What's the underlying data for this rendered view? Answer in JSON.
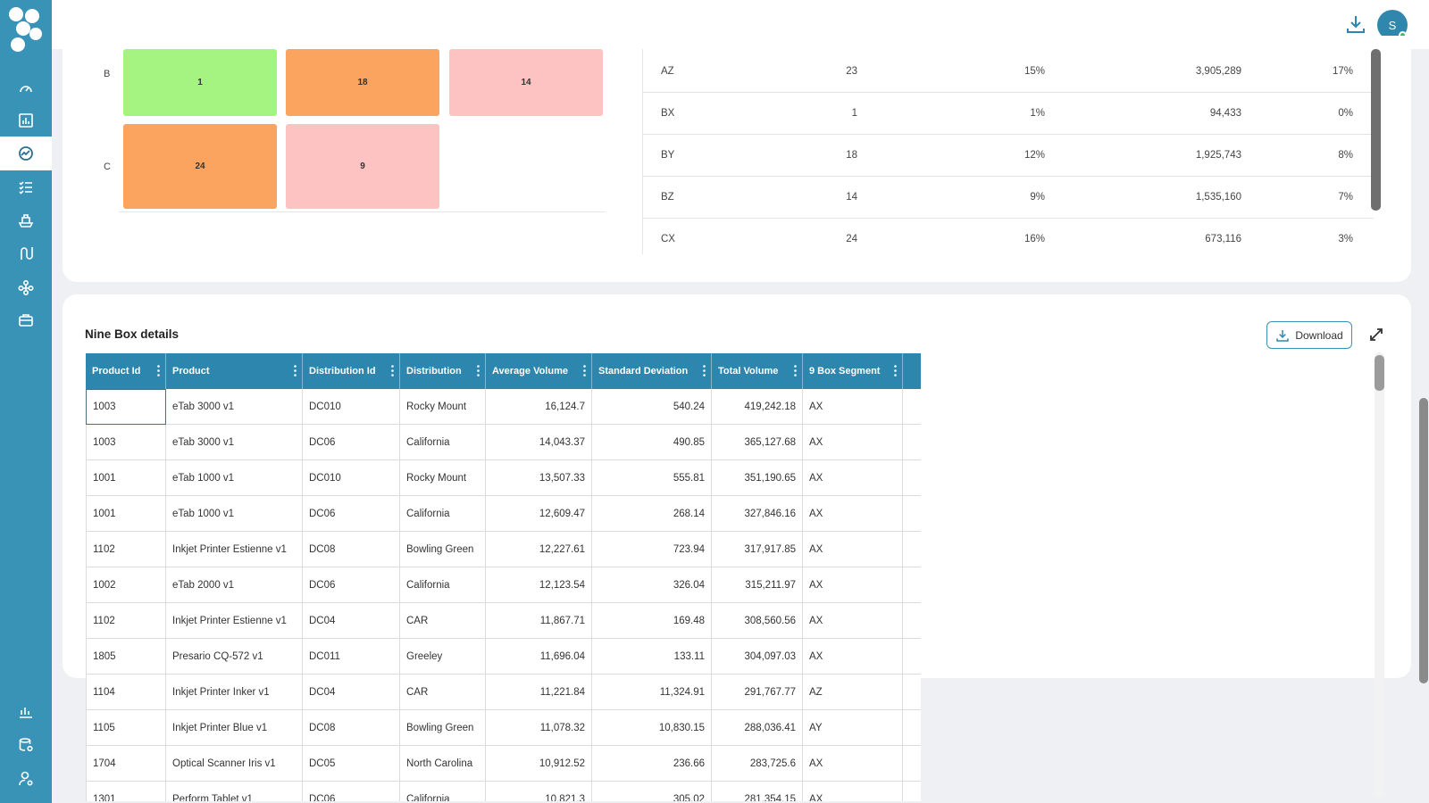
{
  "header": {
    "avatar_initial": "S"
  },
  "sidebar": {
    "items": [
      {
        "icon": "dashboard-gauge-icon"
      },
      {
        "icon": "bar-chart-icon"
      },
      {
        "icon": "trend-chart-icon"
      },
      {
        "icon": "checklist-icon"
      },
      {
        "icon": "ship-icon"
      },
      {
        "icon": "route-icon"
      },
      {
        "icon": "network-icon"
      },
      {
        "icon": "briefcase-icon"
      }
    ],
    "bottom_items": [
      {
        "icon": "report-chart-icon"
      },
      {
        "icon": "database-settings-icon"
      },
      {
        "icon": "user-settings-icon"
      }
    ]
  },
  "matrix": {
    "rows": [
      {
        "label": "B",
        "cells": [
          {
            "value": "1",
            "color": "#a5f482"
          },
          {
            "value": "18",
            "color": "#fba45f"
          },
          {
            "value": "14",
            "color": "#fcc3c2"
          }
        ]
      },
      {
        "label": "C",
        "cells": [
          {
            "value": "24",
            "color": "#fba45f"
          },
          {
            "value": "9",
            "color": "#fcc3c2"
          }
        ]
      }
    ]
  },
  "summary_table": {
    "rows": [
      {
        "segment": "AZ",
        "count": "23",
        "count_pct": "15%",
        "volume": "3,905,289",
        "volume_pct": "17%"
      },
      {
        "segment": "BX",
        "count": "1",
        "count_pct": "1%",
        "volume": "94,433",
        "volume_pct": "0%"
      },
      {
        "segment": "BY",
        "count": "18",
        "count_pct": "12%",
        "volume": "1,925,743",
        "volume_pct": "8%"
      },
      {
        "segment": "BZ",
        "count": "14",
        "count_pct": "9%",
        "volume": "1,535,160",
        "volume_pct": "7%"
      },
      {
        "segment": "CX",
        "count": "24",
        "count_pct": "16%",
        "volume": "673,116",
        "volume_pct": "3%"
      }
    ]
  },
  "details": {
    "title": "Nine Box details",
    "download_label": "Download",
    "columns": [
      "Product Id",
      "Product",
      "Distribution Id",
      "Distribution",
      "Average Volume",
      "Standard Deviation",
      "Total Volume",
      "9 Box Segment"
    ],
    "rows": [
      [
        "1003",
        "eTab 3000 v1",
        "DC010",
        "Rocky Mount",
        "16,124.7",
        "540.24",
        "419,242.18",
        "AX"
      ],
      [
        "1003",
        "eTab 3000 v1",
        "DC06",
        "California",
        "14,043.37",
        "490.85",
        "365,127.68",
        "AX"
      ],
      [
        "1001",
        "eTab 1000 v1",
        "DC010",
        "Rocky Mount",
        "13,507.33",
        "555.81",
        "351,190.65",
        "AX"
      ],
      [
        "1001",
        "eTab 1000 v1",
        "DC06",
        "California",
        "12,609.47",
        "268.14",
        "327,846.16",
        "AX"
      ],
      [
        "1102",
        "Inkjet Printer Estienne v1",
        "DC08",
        "Bowling Green",
        "12,227.61",
        "723.94",
        "317,917.85",
        "AX"
      ],
      [
        "1002",
        "eTab 2000 v1",
        "DC06",
        "California",
        "12,123.54",
        "326.04",
        "315,211.97",
        "AX"
      ],
      [
        "1102",
        "Inkjet Printer Estienne v1",
        "DC04",
        "CAR",
        "11,867.71",
        "169.48",
        "308,560.56",
        "AX"
      ],
      [
        "1805",
        "Presario CQ-572 v1",
        "DC011",
        "Greeley",
        "11,696.04",
        "133.11",
        "304,097.03",
        "AX"
      ],
      [
        "1104",
        "Inkjet Printer Inker v1",
        "DC04",
        "CAR",
        "11,221.84",
        "11,324.91",
        "291,767.77",
        "AZ"
      ],
      [
        "1105",
        "Inkjet Printer Blue v1",
        "DC08",
        "Bowling Green",
        "11,078.32",
        "10,830.15",
        "288,036.41",
        "AY"
      ],
      [
        "1704",
        "Optical Scanner Iris v1",
        "DC05",
        "North Carolina",
        "10,912.52",
        "236.66",
        "283,725.6",
        "AX"
      ],
      [
        "1301",
        "Perform Tablet v1",
        "DC06",
        "California",
        "10,821.3",
        "305.02",
        "281,354.15",
        "AX"
      ]
    ]
  }
}
